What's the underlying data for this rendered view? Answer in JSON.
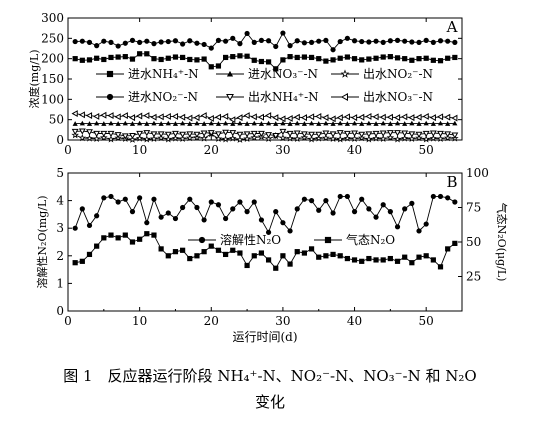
{
  "figure": {
    "caption_line1": "图 1　反应器运行阶段 NH₄⁺-N、NO₂⁻-N、NO₃⁻-N 和 N₂O",
    "caption_line2": "变化",
    "xlabel": "运行时间(d)"
  },
  "chart_data": [
    {
      "type": "line",
      "panel_label": "A",
      "xlabel": "",
      "ylabel": "浓度(mg/L)",
      "xlim": [
        0,
        55
      ],
      "ylim": [
        0,
        300
      ],
      "xticks": [
        0,
        10,
        20,
        30,
        40,
        50
      ],
      "yticks": [
        0,
        50,
        100,
        150,
        200,
        250,
        300
      ],
      "grid": false,
      "legend": "center",
      "x": [
        1,
        2,
        3,
        4,
        5,
        6,
        7,
        8,
        9,
        10,
        11,
        12,
        13,
        14,
        15,
        16,
        17,
        18,
        19,
        20,
        21,
        22,
        23,
        24,
        25,
        26,
        27,
        28,
        29,
        30,
        31,
        32,
        33,
        34,
        35,
        36,
        37,
        38,
        39,
        40,
        41,
        42,
        43,
        44,
        45,
        46,
        47,
        48,
        49,
        50,
        51,
        52,
        53,
        54
      ],
      "series": [
        {
          "name": "进水NH₄⁺-N",
          "marker": "square",
          "values": [
            200,
            196,
            197,
            201,
            198,
            203,
            204,
            205,
            199,
            212,
            212,
            200,
            198,
            201,
            204,
            203,
            198,
            197,
            199,
            180,
            182,
            203,
            205,
            207,
            206,
            196,
            193,
            192,
            175,
            197,
            205,
            203,
            204,
            203,
            200,
            194,
            197,
            201,
            204,
            200,
            197,
            199,
            201,
            204,
            205,
            202,
            200,
            196,
            200,
            201,
            196,
            195,
            201,
            203
          ]
        },
        {
          "name": "进水NO₃⁻-N",
          "marker": "triangle-up",
          "values": [
            40,
            41,
            40,
            41,
            40,
            41,
            40,
            41,
            40,
            41,
            40,
            41,
            40,
            41,
            40,
            41,
            40,
            41,
            40,
            41,
            40,
            41,
            40,
            41,
            40,
            41,
            40,
            41,
            40,
            41,
            40,
            41,
            40,
            41,
            40,
            41,
            40,
            41,
            40,
            41,
            40,
            41,
            40,
            41,
            40,
            41,
            40,
            41,
            40,
            41,
            40,
            41,
            40,
            41
          ]
        },
        {
          "name": "出水NO₂⁻-N",
          "marker": "star",
          "values": [
            12,
            5,
            4,
            3,
            6,
            2,
            5,
            3,
            1,
            4,
            2,
            3,
            5,
            2,
            4,
            3,
            5,
            6,
            4,
            15,
            3,
            2,
            4,
            1,
            3,
            6,
            8,
            3,
            10,
            5,
            4,
            3,
            6,
            2,
            4,
            5,
            3,
            2,
            4,
            3,
            5,
            2,
            4,
            3,
            6,
            2,
            4,
            3,
            5,
            2,
            4,
            3,
            5,
            4
          ]
        },
        {
          "name": "进水NO₂⁻-N",
          "marker": "circle",
          "values": [
            242,
            243,
            240,
            232,
            243,
            240,
            231,
            238,
            245,
            240,
            243,
            237,
            241,
            242,
            244,
            236,
            244,
            238,
            235,
            226,
            245,
            243,
            250,
            237,
            262,
            240,
            245,
            244,
            230,
            263,
            232,
            244,
            239,
            240,
            243,
            245,
            222,
            242,
            250,
            244,
            242,
            241,
            243,
            240,
            244,
            245,
            243,
            241,
            240,
            245,
            240,
            244,
            243,
            240
          ]
        },
        {
          "name": "出水NH₄⁺-N",
          "marker": "triangle-down",
          "values": [
            21,
            22,
            20,
            16,
            16,
            16,
            13,
            10,
            11,
            16,
            18,
            15,
            15,
            14,
            16,
            14,
            15,
            14,
            17,
            18,
            15,
            19,
            18,
            14,
            15,
            16,
            16,
            13,
            11,
            21,
            16,
            17,
            15,
            14,
            14,
            17,
            15,
            18,
            16,
            17,
            14,
            15,
            16,
            17,
            18,
            18,
            17,
            15,
            14,
            16,
            17,
            16,
            15,
            12
          ]
        },
        {
          "name": "出水NO₃⁻-N",
          "marker": "triangle-left",
          "values": [
            65,
            62,
            60,
            58,
            61,
            60,
            57,
            60,
            55,
            59,
            60,
            56,
            57,
            58,
            58,
            56,
            54,
            55,
            60,
            53,
            56,
            58,
            50,
            55,
            60,
            57,
            56,
            60,
            55,
            52,
            53,
            56,
            55,
            57,
            58,
            55,
            52,
            55,
            57,
            55,
            56,
            58,
            57,
            56,
            56,
            55,
            57,
            55,
            56,
            58,
            55,
            57,
            56,
            54
          ]
        }
      ]
    },
    {
      "type": "line",
      "panel_label": "B",
      "xlabel": "运行时间(d)",
      "ylabel": "溶解性N₂O(mg/L)",
      "y2label": "气态N₂O(μg/L)",
      "xlim": [
        0,
        55
      ],
      "ylim": [
        0,
        5
      ],
      "y2lim": [
        0,
        100
      ],
      "xticks": [
        0,
        10,
        20,
        30,
        40,
        50
      ],
      "yticks": [
        0,
        1,
        2,
        3,
        4,
        5
      ],
      "y2ticks": [
        25,
        50,
        75,
        100
      ],
      "grid": false,
      "legend": "center",
      "x": [
        1,
        2,
        3,
        4,
        5,
        6,
        7,
        8,
        9,
        10,
        11,
        12,
        13,
        14,
        15,
        16,
        17,
        18,
        19,
        20,
        21,
        22,
        23,
        24,
        25,
        26,
        27,
        28,
        29,
        30,
        31,
        32,
        33,
        34,
        35,
        36,
        37,
        38,
        39,
        40,
        41,
        42,
        43,
        44,
        45,
        46,
        47,
        48,
        49,
        50,
        51,
        52,
        53,
        54
      ],
      "series": [
        {
          "name": "溶解性N₂O",
          "marker": "circle",
          "axis": "left",
          "values": [
            3.0,
            3.7,
            3.1,
            3.45,
            4.1,
            4.15,
            3.95,
            4.05,
            3.6,
            4.1,
            3.2,
            4.05,
            3.4,
            3.55,
            3.35,
            3.75,
            4.05,
            3.75,
            3.3,
            3.95,
            3.85,
            3.35,
            3.7,
            3.95,
            3.6,
            3.95,
            3.3,
            2.85,
            3.6,
            3.2,
            2.9,
            3.7,
            4.05,
            4.0,
            3.65,
            4.0,
            3.55,
            4.15,
            4.15,
            3.6,
            4.05,
            3.7,
            3.4,
            3.85,
            3.6,
            3.05,
            3.7,
            3.9,
            2.9,
            3.15,
            4.15,
            4.15,
            4.1,
            3.95
          ]
        },
        {
          "name": "气态N₂O",
          "marker": "square",
          "axis": "right",
          "values": [
            35,
            36,
            41,
            47,
            53,
            55,
            53,
            55,
            50,
            52,
            56,
            55,
            45,
            40,
            43,
            44,
            38,
            40,
            43,
            47,
            44,
            41,
            44,
            42,
            33,
            40,
            42,
            37,
            31,
            40,
            34,
            43,
            42,
            45,
            39,
            40,
            41,
            40,
            38,
            37,
            36,
            38,
            37,
            37,
            38,
            36,
            39,
            35,
            39,
            40,
            37,
            32,
            45,
            49
          ]
        }
      ]
    }
  ]
}
